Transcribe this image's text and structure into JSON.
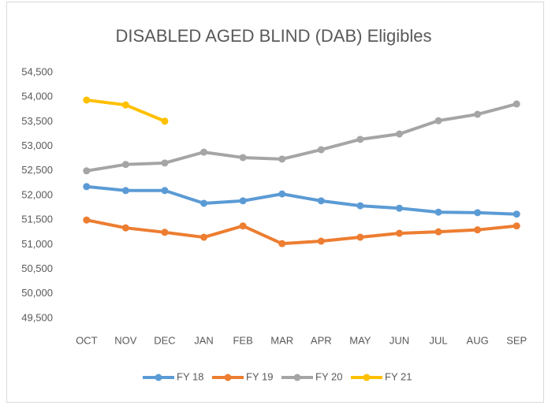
{
  "chart_data": {
    "type": "line",
    "title": "DISABLED AGED BLIND (DAB) Eligibles",
    "categories": [
      "OCT",
      "NOV",
      "DEC",
      "JAN",
      "FEB",
      "MAR",
      "APR",
      "MAY",
      "JUN",
      "JUL",
      "AUG",
      "SEP"
    ],
    "series": [
      {
        "name": "FY 18",
        "color": "#5b9bd5",
        "values": [
          52180,
          52100,
          52100,
          51840,
          51890,
          52030,
          51890,
          51790,
          51740,
          51660,
          51650,
          51620
        ]
      },
      {
        "name": "FY 19",
        "color": "#ed7d31",
        "values": [
          51500,
          51340,
          51250,
          51150,
          51380,
          51020,
          51070,
          51150,
          51230,
          51260,
          51300,
          51380
        ]
      },
      {
        "name": "FY 20",
        "color": "#a5a5a5",
        "values": [
          52500,
          52630,
          52660,
          52880,
          52770,
          52740,
          52930,
          53140,
          53250,
          53520,
          53650,
          53860
        ]
      },
      {
        "name": "FY 21",
        "color": "#ffc000",
        "values": [
          53940,
          53840,
          53510,
          null,
          null,
          null,
          null,
          null,
          null,
          null,
          null,
          null
        ]
      }
    ],
    "ylim": [
      49500,
      54500
    ],
    "yticks": [
      {
        "value": 49500,
        "label": "49,500"
      },
      {
        "value": 50000,
        "label": "50,000"
      },
      {
        "value": 50500,
        "label": "50,500"
      },
      {
        "value": 51000,
        "label": "51,000"
      },
      {
        "value": 51500,
        "label": "51,500"
      },
      {
        "value": 52000,
        "label": "52,000"
      },
      {
        "value": 52500,
        "label": "52,500"
      },
      {
        "value": 53000,
        "label": "53,000"
      },
      {
        "value": 53500,
        "label": "53,500"
      },
      {
        "value": 54000,
        "label": "54,000"
      },
      {
        "value": 54500,
        "label": "54,500"
      }
    ],
    "grid": false,
    "legend": "bottom"
  }
}
